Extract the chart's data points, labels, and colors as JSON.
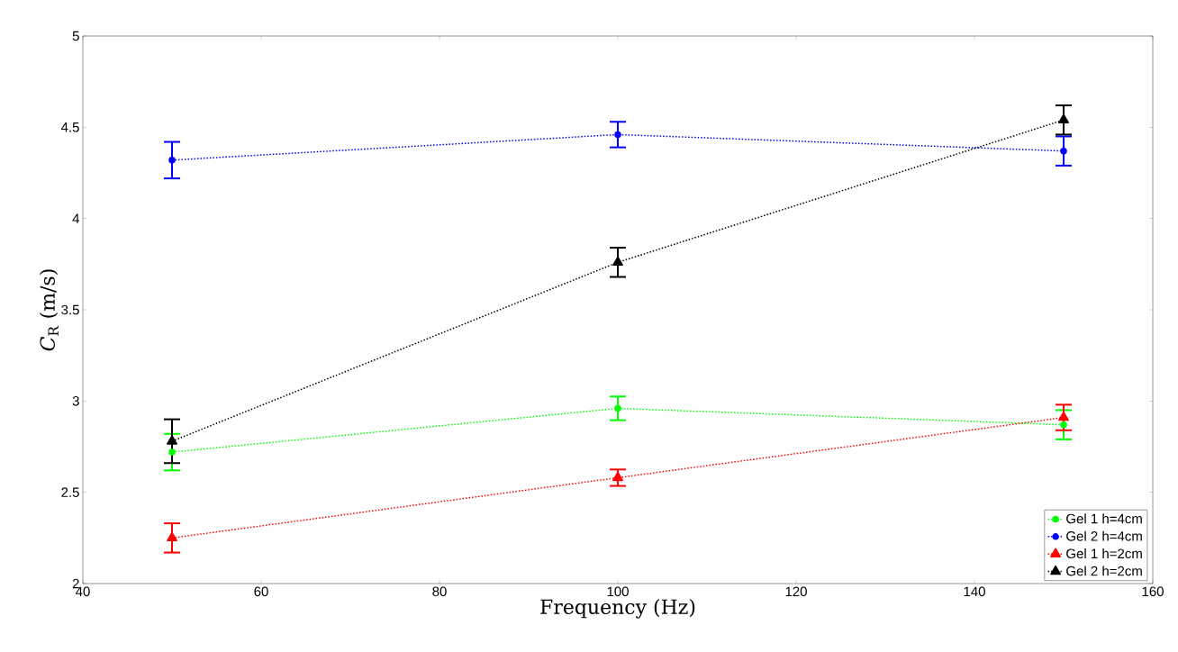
{
  "chart_data": {
    "type": "line",
    "xlabel": "Frequency (Hz)",
    "ylabel": "*C*$_{R}$ (m/s)",
    "x": [
      50,
      100,
      150
    ],
    "xlim": [
      40,
      160
    ],
    "xticks": [
      40,
      60,
      80,
      100,
      120,
      140,
      160
    ],
    "ylim": [
      2,
      5
    ],
    "yticks": [
      2,
      2.5,
      3,
      3.5,
      4,
      4.5,
      5
    ],
    "legend": "bottom right",
    "line_style": "dotted",
    "grid": false,
    "series": [
      {
        "name": "Gel 1 h=4cm",
        "color": "#00ff00",
        "marker": "circle",
        "values": [
          2.72,
          2.96,
          2.87
        ],
        "errors": [
          0.1,
          0.065,
          0.08
        ]
      },
      {
        "name": "Gel 2 h=4cm",
        "color": "#0000ff",
        "marker": "circle",
        "values": [
          4.32,
          4.46,
          4.37
        ],
        "errors": [
          0.1,
          0.07,
          0.08
        ]
      },
      {
        "name": "Gel 1 h=2cm",
        "color": "#ff0000",
        "marker": "triangle",
        "values": [
          2.25,
          2.58,
          2.91
        ],
        "errors": [
          0.08,
          0.045,
          0.07
        ]
      },
      {
        "name": "Gel 2 h=2cm",
        "color": "#000000",
        "marker": "triangle",
        "values": [
          2.78,
          3.76,
          4.54
        ],
        "errors": [
          0.12,
          0.08,
          0.08
        ]
      }
    ]
  }
}
